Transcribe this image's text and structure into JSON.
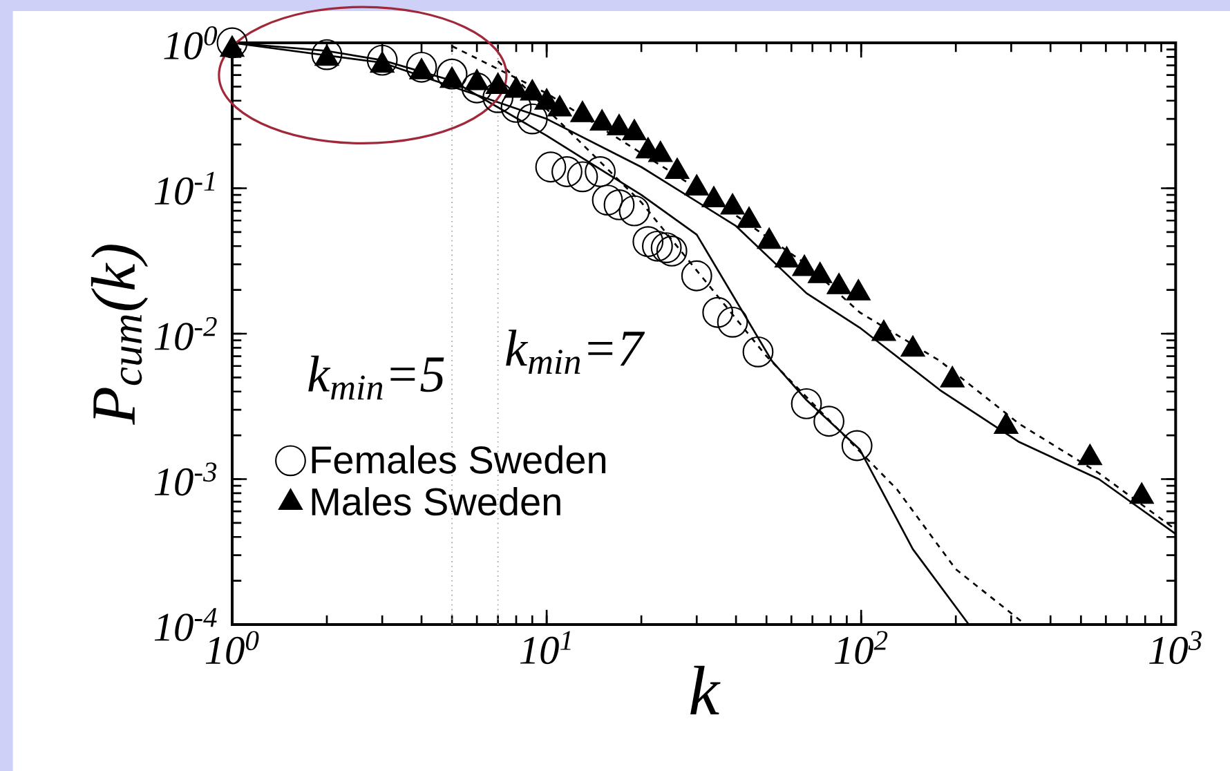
{
  "chart_data": {
    "type": "scatter",
    "log": "xy",
    "xlabel": "k",
    "ylabel": "P$_{cum}$(k)",
    "xlim": [
      1,
      1000
    ],
    "ylim": [
      0.0001,
      1
    ],
    "xticks": [
      {
        "value": 1,
        "label": "10$^{0}$"
      },
      {
        "value": 10,
        "label": "10$^{1}$"
      },
      {
        "value": 100,
        "label": "10$^{2}$"
      },
      {
        "value": 1000,
        "label": "10$^{3}$"
      }
    ],
    "yticks": [
      {
        "value": 0.0001,
        "label": "10$^{-4}$"
      },
      {
        "value": 0.001,
        "label": "10$^{-3}$"
      },
      {
        "value": 0.01,
        "label": "10$^{-2}$"
      },
      {
        "value": 0.1,
        "label": "10$^{-1}$"
      },
      {
        "value": 1,
        "label": "10$^{0}$"
      }
    ],
    "legend": "left",
    "series": [
      {
        "name": "Females Sweden",
        "type": "scatter",
        "marker": "circle",
        "color": "#000000",
        "x": [
          1,
          2,
          3,
          4,
          5,
          6,
          7,
          8,
          9,
          10.3,
          11.6,
          13,
          14.8,
          15.6,
          17,
          19,
          21,
          22.5,
          24,
          25,
          30,
          35,
          39,
          47,
          67,
          79,
          97
        ],
        "values": [
          1,
          0.83,
          0.76,
          0.68,
          0.61,
          0.49,
          0.42,
          0.36,
          0.3,
          0.14,
          0.13,
          0.12,
          0.13,
          0.083,
          0.077,
          0.07,
          0.043,
          0.04,
          0.039,
          0.037,
          0.025,
          0.014,
          0.012,
          0.0075,
          0.0033,
          0.0025,
          0.0017
        ]
      },
      {
        "name": "Males Sweden",
        "type": "scatter",
        "marker": "triangle",
        "color": "#000000",
        "x": [
          1,
          2,
          3,
          4,
          5,
          6,
          7,
          8,
          9,
          10,
          11,
          13,
          15,
          17,
          19,
          21,
          23,
          26,
          30,
          34,
          39,
          44,
          51,
          58,
          66,
          74,
          85,
          98,
          118,
          146,
          195,
          289,
          534,
          780
        ],
        "values": [
          0.9,
          0.78,
          0.7,
          0.63,
          0.55,
          0.53,
          0.5,
          0.47,
          0.45,
          0.39,
          0.35,
          0.32,
          0.28,
          0.26,
          0.24,
          0.18,
          0.17,
          0.13,
          0.1,
          0.083,
          0.074,
          0.06,
          0.043,
          0.032,
          0.028,
          0.025,
          0.021,
          0.019,
          0.01,
          0.0078,
          0.0048,
          0.0023,
          0.0014,
          0.00076
        ]
      },
      {
        "type": "line",
        "line_style": "solid",
        "color": "#000000",
        "x": [
          1,
          2,
          3,
          5,
          10,
          20,
          30,
          52,
          67,
          99,
          146,
          220
        ],
        "values": [
          1,
          0.88,
          0.76,
          0.55,
          0.23,
          0.09,
          0.048,
          0.0065,
          0.0035,
          0.0016,
          0.00033,
          0.0001
        ]
      },
      {
        "type": "line",
        "line_style": "solid",
        "color": "#000000",
        "x": [
          1,
          3,
          10,
          20,
          40,
          67,
          99,
          178,
          318,
          570,
          1000
        ],
        "values": [
          1,
          0.73,
          0.3,
          0.14,
          0.055,
          0.019,
          0.011,
          0.0041,
          0.0018,
          0.001,
          0.00042
        ]
      },
      {
        "type": "line",
        "line_style": "dashed",
        "color": "#000000",
        "x": [
          5,
          10,
          30,
          67,
          99,
          178,
          318,
          570,
          1000
        ],
        "values": [
          0.95,
          0.45,
          0.1,
          0.03,
          0.014,
          0.0065,
          0.0024,
          0.0011,
          0.00045
        ]
      },
      {
        "type": "line",
        "line_style": "dashed",
        "color": "#000000",
        "x": [
          7,
          20,
          50,
          130,
          200,
          333
        ],
        "values": [
          0.75,
          0.08,
          0.007,
          0.00085,
          0.00024,
          0.0001
        ]
      }
    ],
    "ref_lines": [
      {
        "axis": "x",
        "value": 5,
        "label": "k$_{min}$=5",
        "color": "#999999",
        "line_style": "dotted"
      },
      {
        "axis": "x",
        "value": 7,
        "label": "k$_{min}$=7",
        "color": "#999999",
        "line_style": "dotted"
      }
    ]
  }
}
